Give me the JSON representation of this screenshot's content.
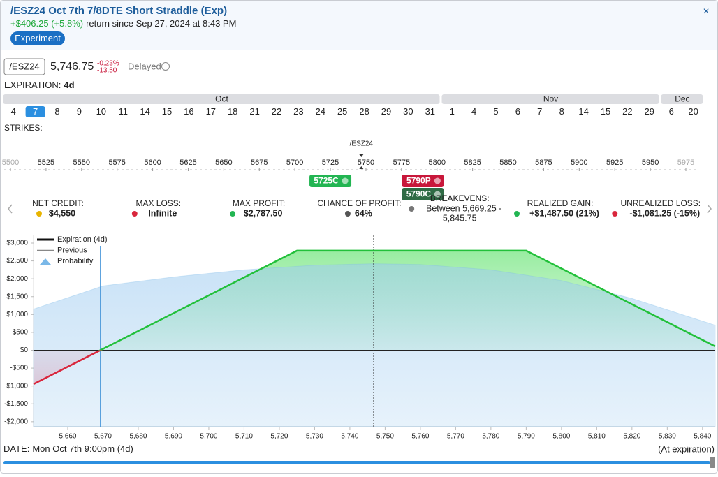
{
  "header": {
    "title": "/ESZ24 Oct 7th 7/8DTE Short Straddle (Exp)",
    "return": "+$406.25 (+5.8%)",
    "return_note": "return since Sep 27, 2024 at 8:43 PM",
    "badge": "Experiment",
    "close": "×"
  },
  "quote": {
    "symbol": "/ESZ24",
    "price": "5,746.75",
    "change_pct": "-0.23%",
    "change": "-13.50",
    "status": "Delayed"
  },
  "expiration": {
    "label": "EXPIRATION:",
    "value": "4d",
    "selected": [
      0,
      1
    ],
    "months": [
      {
        "name": "Oct",
        "dates": [
          4,
          7,
          8,
          9,
          10,
          11,
          14,
          15,
          16,
          17,
          18,
          21,
          22,
          23,
          24,
          25,
          28,
          29,
          30,
          31
        ]
      },
      {
        "name": "Nov",
        "dates": [
          1,
          4,
          5,
          6,
          7,
          8,
          14,
          15,
          22,
          29
        ]
      },
      {
        "name": "Dec",
        "dates": [
          6,
          20
        ]
      }
    ]
  },
  "strikes": {
    "label": "STRIKES:",
    "underlying": "/ESZ24",
    "ticks": [
      5500,
      5525,
      5550,
      5575,
      5600,
      5625,
      5650,
      5675,
      5700,
      5725,
      5750,
      5775,
      5800,
      5825,
      5850,
      5875,
      5900,
      5925,
      5950,
      5975
    ],
    "tags": [
      {
        "label": "5725C",
        "strike": 5725,
        "color": "#22b552"
      },
      {
        "label": "5790P",
        "strike": 5790,
        "color": "#c8173a"
      },
      {
        "label": "5790C",
        "strike": 5790,
        "color": "#2f6b45"
      }
    ]
  },
  "stats": [
    {
      "label": "NET CREDIT:",
      "value": "$4,550"
    },
    {
      "label": "MAX LOSS:",
      "value": "Infinite"
    },
    {
      "label": "MAX PROFIT:",
      "value": "$2,787.50"
    },
    {
      "label": "CHANCE OF PROFIT:",
      "value": "64%"
    },
    {
      "label": "BREAKEVENS:",
      "value": [
        "Between 5,669.25 -",
        "5,845.75"
      ]
    },
    {
      "label": "REALIZED GAIN:",
      "value": "+$1,487.50 (21%)"
    },
    {
      "label": "UNREALIZED LOSS:",
      "value": "-$1,081.25 (-15%)"
    }
  ],
  "chart_data": {
    "type": "line",
    "grid": false,
    "xlim": [
      5650.3,
      5843.6
    ],
    "ylim": [
      -2140,
      3215
    ],
    "current_price": 5746.75,
    "breakeven": 5669.25,
    "xticks": [
      {
        "value": 5660,
        "label": "5,660"
      },
      {
        "value": 5670,
        "label": "5,670"
      },
      {
        "value": 5680,
        "label": "5,680"
      },
      {
        "value": 5690,
        "label": "5,690"
      },
      {
        "value": 5700,
        "label": "5,700"
      },
      {
        "value": 5710,
        "label": "5,710"
      },
      {
        "value": 5720,
        "label": "5,720"
      },
      {
        "value": 5730,
        "label": "5,730"
      },
      {
        "value": 5740,
        "label": "5,740"
      },
      {
        "value": 5750,
        "label": "5,750"
      },
      {
        "value": 5760,
        "label": "5,760"
      },
      {
        "value": 5770,
        "label": "5,770"
      },
      {
        "value": 5780,
        "label": "5,780"
      },
      {
        "value": 5790,
        "label": "5,790"
      },
      {
        "value": 5800,
        "label": "5,800"
      },
      {
        "value": 5810,
        "label": "5,810"
      },
      {
        "value": 5820,
        "label": "5,820"
      },
      {
        "value": 5830,
        "label": "5,830"
      },
      {
        "value": 5840,
        "label": "5,840"
      }
    ],
    "yticks": [
      {
        "value": 3000,
        "label": "$3,000"
      },
      {
        "value": 2500,
        "label": "$2,500"
      },
      {
        "value": 2000,
        "label": "$2,000"
      },
      {
        "value": 1500,
        "label": "$1,500"
      },
      {
        "value": 1000,
        "label": "$1,000"
      },
      {
        "value": 500,
        "label": "$500"
      },
      {
        "value": 0,
        "label": "$0"
      },
      {
        "value": -500,
        "label": "-$500"
      },
      {
        "value": -1000,
        "label": "-$1,000"
      },
      {
        "value": -1500,
        "label": "-$1,500"
      },
      {
        "value": -2000,
        "label": "-$2,000"
      }
    ],
    "series": [
      {
        "name": "Expiration (4d)",
        "type": "line",
        "color": "#22c03a",
        "loss_color": "#d9263c",
        "legend_color": "#111111",
        "x": [
          5650.3,
          5669.25,
          5725,
          5790,
          5843.6
        ],
        "values": [
          -947.5,
          0,
          2787.5,
          2787.5,
          107.5
        ]
      },
      {
        "name": "Previous",
        "type": "legend",
        "color": "#888888"
      },
      {
        "name": "Probability",
        "type": "area",
        "color": "#7ab8e8",
        "x": [
          5650.3,
          5670,
          5690,
          5710,
          5730,
          5746.75,
          5760,
          5780,
          5800,
          5820,
          5843.6
        ],
        "values": [
          1150,
          1800,
          2050,
          2250,
          2380,
          2420,
          2400,
          2250,
          1950,
          1450,
          700
        ]
      }
    ]
  },
  "footer": {
    "date_label": "DATE:",
    "date": "Mon Oct 7th 9:00pm (4d)",
    "note": "(At expiration)"
  }
}
